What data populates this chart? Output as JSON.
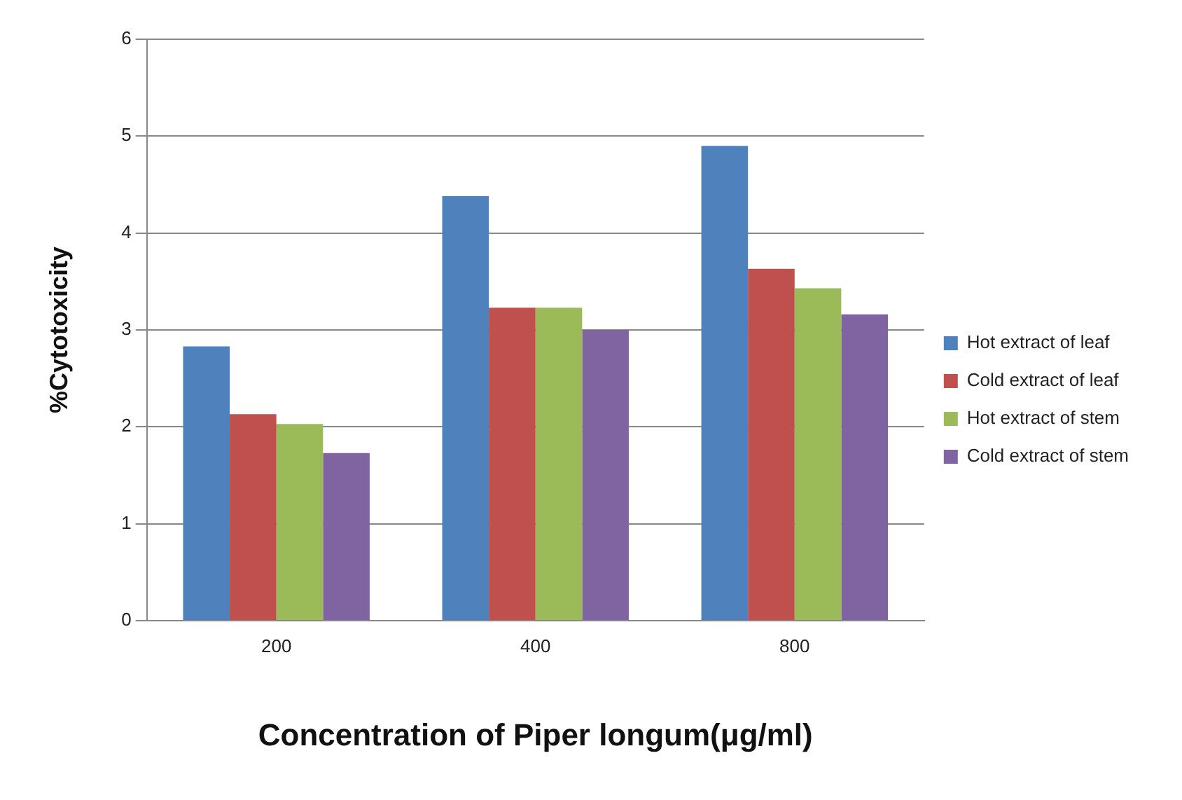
{
  "chart_data": {
    "type": "bar",
    "xlabel": "Concentration of Piper longum(μg/ml)",
    "ylabel": "%Cytotoxicity",
    "categories": [
      "200",
      "400",
      "800"
    ],
    "series": [
      {
        "name": "Hot extract of leaf",
        "color": "#4f81bd",
        "values": [
          2.83,
          4.38,
          4.9
        ]
      },
      {
        "name": "Cold extract of leaf",
        "color": "#c0504d",
        "values": [
          2.13,
          3.23,
          3.63
        ]
      },
      {
        "name": "Hot extract of stem",
        "color": "#9bbb59",
        "values": [
          2.03,
          3.23,
          3.43
        ]
      },
      {
        "name": "Cold extract of stem",
        "color": "#8064a2",
        "values": [
          1.73,
          3.0,
          3.16
        ]
      }
    ],
    "ylim": [
      0,
      6
    ],
    "yticks": [
      0,
      1,
      2,
      3,
      4,
      5,
      6
    ],
    "grid": "y",
    "legend": "right"
  }
}
